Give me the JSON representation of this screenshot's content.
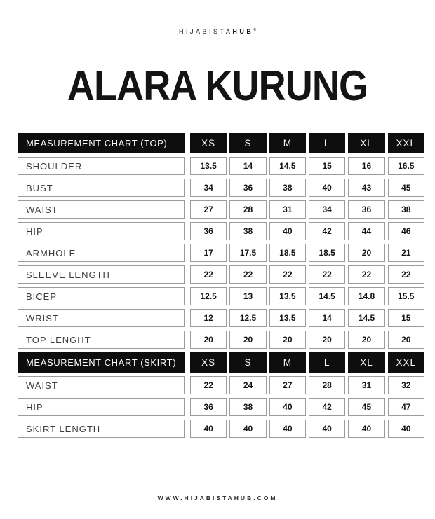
{
  "brand": {
    "logo_prefix": "HIJABISTA",
    "logo_suffix": "HUB",
    "logo_mark": "®"
  },
  "title": "ALARA KURUNG",
  "sizes": [
    "XS",
    "S",
    "M",
    "L",
    "XL",
    "XXL"
  ],
  "top_chart": {
    "header": "MEASUREMENT CHART (TOP)",
    "rows": [
      {
        "label": "SHOULDER",
        "values": [
          "13.5",
          "14",
          "14.5",
          "15",
          "16",
          "16.5"
        ]
      },
      {
        "label": "BUST",
        "values": [
          "34",
          "36",
          "38",
          "40",
          "43",
          "45"
        ]
      },
      {
        "label": "WAIST",
        "values": [
          "27",
          "28",
          "31",
          "34",
          "36",
          "38"
        ]
      },
      {
        "label": "HIP",
        "values": [
          "36",
          "38",
          "40",
          "42",
          "44",
          "46"
        ]
      },
      {
        "label": "ARMHOLE",
        "values": [
          "17",
          "17.5",
          "18.5",
          "18.5",
          "20",
          "21"
        ]
      },
      {
        "label": "SLEEVE LENGTH",
        "values": [
          "22",
          "22",
          "22",
          "22",
          "22",
          "22"
        ]
      },
      {
        "label": "BICEP",
        "values": [
          "12.5",
          "13",
          "13.5",
          "14.5",
          "14.8",
          "15.5"
        ]
      },
      {
        "label": "WRIST",
        "values": [
          "12",
          "12.5",
          "13.5",
          "14",
          "14.5",
          "15"
        ]
      },
      {
        "label": "TOP LENGHT",
        "values": [
          "20",
          "20",
          "20",
          "20",
          "20",
          "20"
        ]
      }
    ]
  },
  "skirt_chart": {
    "header": "MEASUREMENT CHART (SKIRT)",
    "rows": [
      {
        "label": "WAIST",
        "values": [
          "22",
          "24",
          "27",
          "28",
          "31",
          "32"
        ]
      },
      {
        "label": "HIP",
        "values": [
          "36",
          "38",
          "40",
          "42",
          "45",
          "47"
        ]
      },
      {
        "label": "SKIRT LENGTH",
        "values": [
          "40",
          "40",
          "40",
          "40",
          "40",
          "40"
        ]
      }
    ]
  },
  "footer": {
    "website": "WWW.HIJABISTAHUB.COM"
  },
  "colors": {
    "header_bg": "#0e0e0e",
    "header_text": "#ffffff",
    "cell_border": "#9c9c9c",
    "label_text": "#3d3d3d",
    "value_text": "#141414",
    "background": "#ffffff"
  }
}
